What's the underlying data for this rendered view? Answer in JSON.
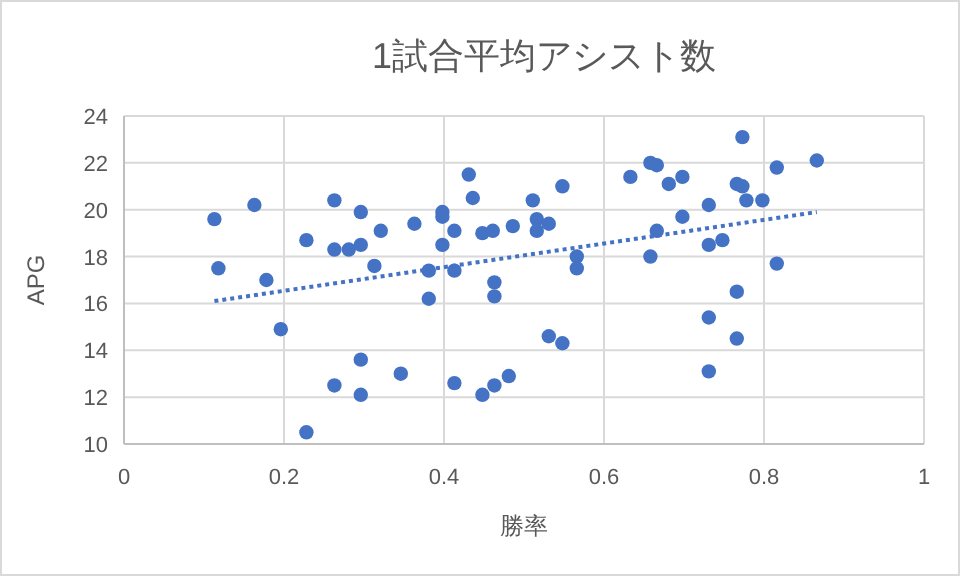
{
  "chart_data": {
    "type": "scatter",
    "title": "1試合平均アシスト数",
    "xlabel": "勝率",
    "ylabel": "APG",
    "xlim": [
      0,
      1
    ],
    "xticks": [
      0,
      0.2,
      0.4,
      0.6,
      0.8,
      1
    ],
    "ylim": [
      10,
      24
    ],
    "yticks": [
      10,
      12,
      14,
      16,
      18,
      20,
      22,
      24
    ],
    "grid": true,
    "series": [
      {
        "type": "scatter",
        "color": "#4472c4",
        "marker": "circle",
        "x": [
          0.113,
          0.118,
          0.163,
          0.178,
          0.196,
          0.228,
          0.228,
          0.263,
          0.263,
          0.263,
          0.281,
          0.296,
          0.296,
          0.296,
          0.296,
          0.313,
          0.321,
          0.346,
          0.363,
          0.381,
          0.381,
          0.398,
          0.398,
          0.398,
          0.413,
          0.413,
          0.413,
          0.431,
          0.436,
          0.448,
          0.448,
          0.461,
          0.463,
          0.463,
          0.463,
          0.481,
          0.486,
          0.511,
          0.516,
          0.516,
          0.531,
          0.548,
          0.566,
          0.566,
          0.531,
          0.548,
          0.633,
          0.658,
          0.666,
          0.681,
          0.698,
          0.698,
          0.666,
          0.658,
          0.731,
          0.731,
          0.748,
          0.731,
          0.731,
          0.766,
          0.766,
          0.766,
          0.773,
          0.773,
          0.778,
          0.798,
          0.816,
          0.816,
          0.866
        ],
        "values": [
          19.6,
          17.5,
          20.2,
          17.0,
          14.9,
          18.7,
          10.5,
          20.4,
          18.3,
          12.5,
          18.3,
          19.9,
          18.5,
          13.6,
          12.1,
          17.6,
          19.1,
          13.0,
          19.4,
          17.4,
          16.2,
          19.9,
          19.7,
          18.5,
          19.1,
          17.4,
          12.6,
          21.5,
          20.5,
          19.0,
          12.1,
          19.1,
          16.9,
          16.3,
          12.5,
          12.9,
          19.3,
          20.4,
          19.6,
          19.1,
          19.4,
          21.0,
          18.0,
          17.5,
          14.6,
          14.3,
          21.4,
          22.0,
          21.9,
          21.1,
          21.4,
          19.7,
          19.1,
          18.0,
          20.2,
          18.5,
          18.7,
          15.4,
          13.1,
          16.5,
          14.5,
          21.1,
          21.0,
          23.1,
          20.4,
          20.4,
          21.8,
          17.7,
          22.1
        ]
      },
      {
        "type": "line",
        "color": "#4472c4",
        "line_style": "dotted",
        "marker": "none",
        "x": [
          0.113,
          0.866
        ],
        "values": [
          16.1,
          19.9
        ]
      }
    ]
  }
}
